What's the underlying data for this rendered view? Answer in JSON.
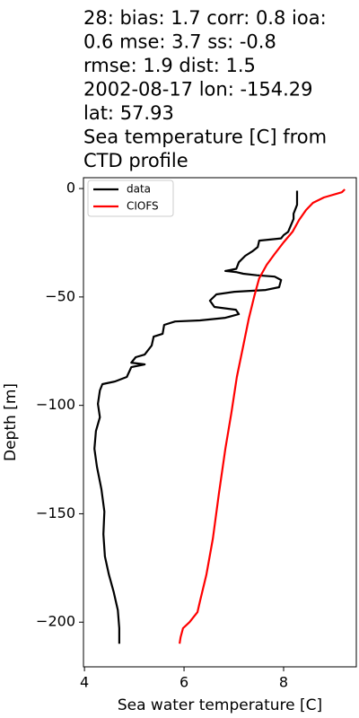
{
  "chart_data": {
    "type": "line",
    "title": [
      "28: bias: 1.7  corr: 0.8  ioa:",
      "0.6  mse: 3.7  ss: -0.8",
      "rmse: 1.9  dist: 1.5",
      "2002-08-17 lon: -154.29",
      "lat: 57.93",
      "Sea temperature [C] from",
      "CTD profile"
    ],
    "xlabel": "Sea water temperature [C]",
    "ylabel": "Depth [m]",
    "xlim": [
      3.98,
      9.46
    ],
    "ylim": [
      -220.6,
      5.0
    ],
    "xticks": [
      4,
      6,
      8
    ],
    "yticks": [
      0,
      {
        "value": -50,
        "label": "−50"
      },
      {
        "value": -100,
        "label": "−100"
      },
      {
        "value": -150,
        "label": "−150"
      },
      {
        "value": -200,
        "label": "−200"
      }
    ],
    "legend": "upper left",
    "series": [
      {
        "name": "data",
        "color": "#000000",
        "x": [
          8.27,
          8.27,
          8.2,
          8.2,
          8.09,
          8.0,
          7.95,
          7.51,
          7.48,
          7.37,
          7.23,
          7.1,
          7.05,
          6.83,
          7.04,
          7.19,
          7.46,
          7.82,
          7.95,
          7.91,
          7.64,
          7.01,
          6.65,
          6.52,
          6.61,
          7.04,
          7.1,
          6.83,
          6.32,
          5.82,
          5.6,
          5.57,
          5.39,
          5.35,
          5.21,
          5.03,
          4.94,
          5.21,
          4.94,
          4.85,
          4.61,
          4.36,
          4.31,
          4.27,
          4.31,
          4.23,
          4.2,
          4.25,
          4.34,
          4.4,
          4.38,
          4.41,
          4.49,
          4.59,
          4.67,
          4.7,
          4.7
        ],
        "y": [
          -1,
          -7.5,
          -11.6,
          -14,
          -20,
          -21.5,
          -23,
          -24,
          -27,
          -29,
          -31,
          -34,
          -37,
          -38,
          -38.5,
          -39.3,
          -40,
          -40.6,
          -42.2,
          -45.5,
          -46.8,
          -47.6,
          -48.8,
          -51.7,
          -54.6,
          -55.9,
          -57.9,
          -59.6,
          -60.8,
          -61.3,
          -62.9,
          -67,
          -68.3,
          -72.4,
          -76.6,
          -77.8,
          -80.3,
          -81.1,
          -82.4,
          -86.9,
          -89,
          -90.2,
          -93.1,
          -99.3,
          -105.5,
          -111.8,
          -120,
          -128.3,
          -138.7,
          -149,
          -159.4,
          -169.7,
          -178,
          -186.3,
          -194.5,
          -202.8,
          -209.9
        ]
      },
      {
        "name": "CIOFS",
        "color": "#ff0000",
        "x": [
          9.23,
          9.17,
          8.81,
          8.59,
          8.45,
          8.31,
          8.18,
          8.0,
          7.82,
          7.66,
          7.51,
          7.41,
          7.3,
          7.19,
          7.06,
          6.95,
          6.83,
          6.7,
          6.58,
          6.45,
          6.32,
          6.27,
          6.11,
          5.98,
          5.93,
          5.91
        ],
        "y": [
          -0.4,
          -1.7,
          -4.1,
          -6.6,
          -9.9,
          -14.5,
          -19.9,
          -24.8,
          -30.2,
          -35.2,
          -41.4,
          -49.7,
          -60,
          -72.4,
          -86.9,
          -103.5,
          -120,
          -140.7,
          -161.4,
          -178,
          -190.4,
          -195.4,
          -200,
          -202.8,
          -207,
          -209.9
        ]
      }
    ]
  }
}
